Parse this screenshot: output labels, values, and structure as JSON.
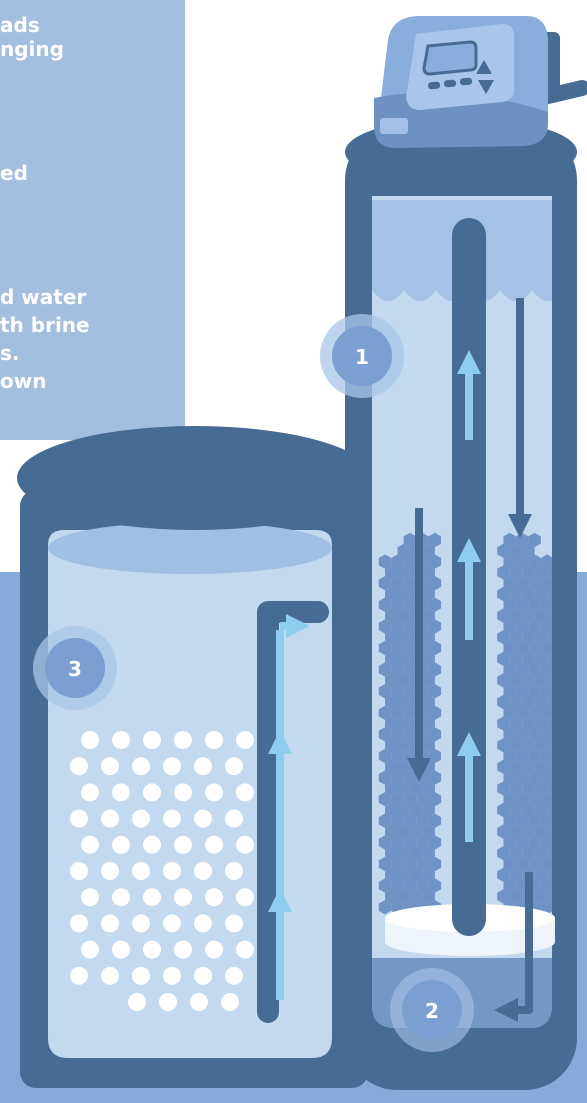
{
  "text_panel": {
    "lines": [
      "ads",
      "nging",
      "ed",
      "d water",
      "th brine",
      "s.",
      "own"
    ]
  },
  "badges": [
    {
      "label": "1"
    },
    {
      "label": "2"
    },
    {
      "label": "3"
    }
  ],
  "colors": {
    "tank_dark": "#466c93",
    "tank_inner": "#c2d9ef",
    "water": "#8eb3df",
    "arrow": "#8dcdee",
    "panel": "#a2bfe0",
    "floor": "#87abd9",
    "badge": "#7a9fd0"
  }
}
